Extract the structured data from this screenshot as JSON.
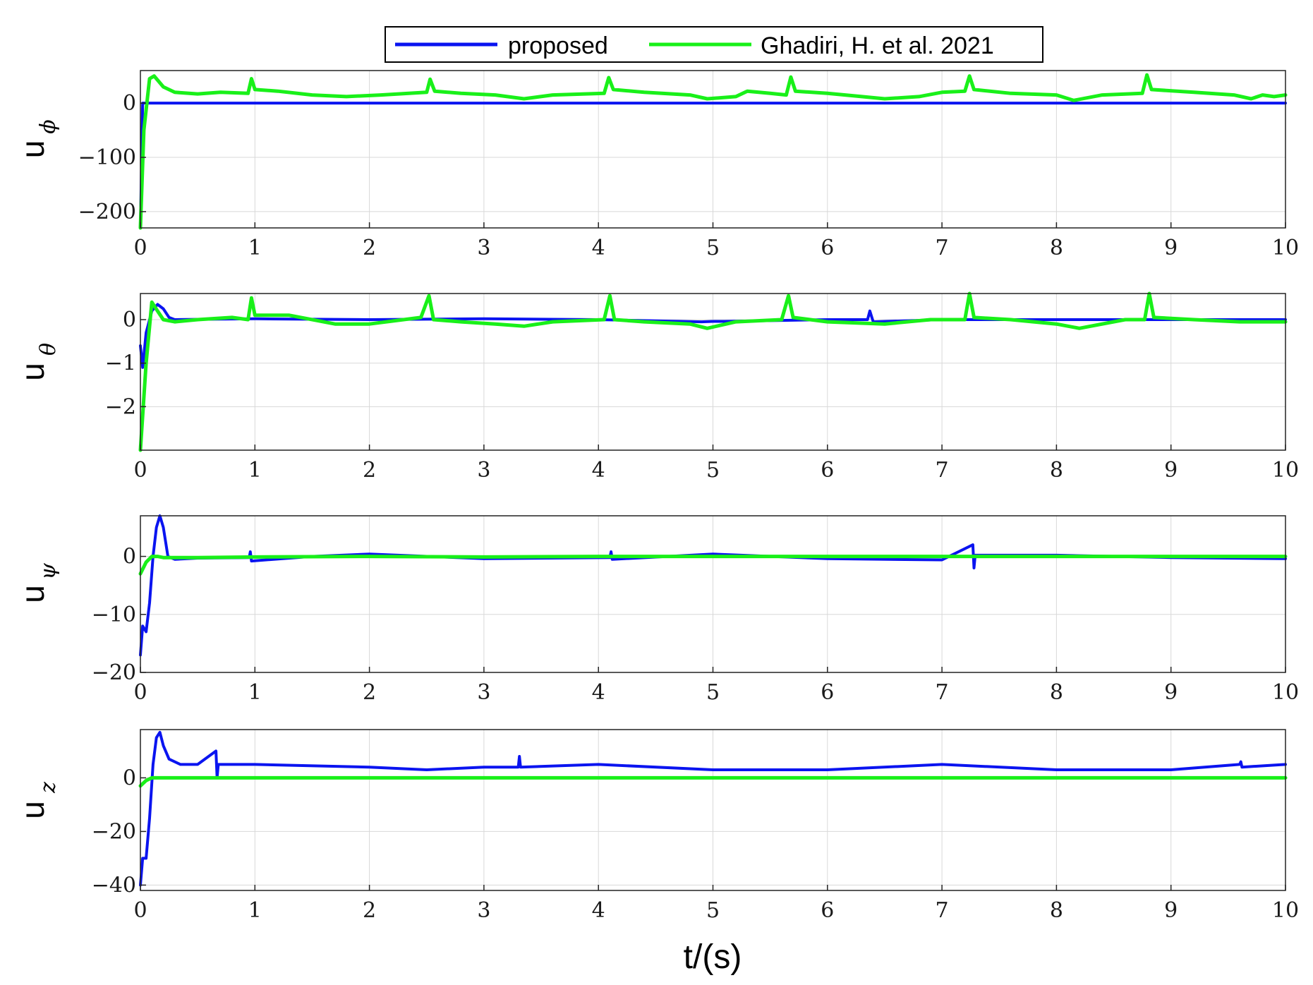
{
  "colors": {
    "proposed": "#0a14f0",
    "ghadiri": "#19f019",
    "grid": "#d8d8d8",
    "axis": "#222222"
  },
  "legend": {
    "items": [
      "proposed",
      "Ghadiri, H. et al. 2021"
    ],
    "placement": "top-center"
  },
  "xlabel": "t/(s)",
  "chart_data": [
    {
      "type": "line",
      "ylabel": "u",
      "ylabel_sub": "ϕ",
      "xlim": [
        0,
        10
      ],
      "ylim": [
        -230,
        60
      ],
      "xticks": [
        0,
        1,
        2,
        3,
        4,
        5,
        6,
        7,
        8,
        9,
        10
      ],
      "yticks": [
        0,
        -100,
        -200
      ],
      "ytick_labels": [
        "0",
        "−100",
        "−200"
      ],
      "grid": true,
      "series": [
        {
          "name": "proposed",
          "x": [
            0,
            0.02,
            10
          ],
          "y": [
            -230,
            0,
            0
          ]
        },
        {
          "name": "Ghadiri, H. et al. 2021",
          "x": [
            0,
            0.03,
            0.08,
            0.12,
            0.2,
            0.3,
            0.5,
            0.7,
            0.94,
            0.97,
            1.0,
            1.2,
            1.5,
            1.8,
            2.1,
            2.5,
            2.53,
            2.57,
            2.8,
            3.1,
            3.35,
            3.6,
            4.05,
            4.09,
            4.13,
            4.4,
            4.8,
            4.95,
            5.2,
            5.3,
            5.5,
            5.64,
            5.68,
            5.72,
            6.0,
            6.3,
            6.5,
            6.8,
            7.0,
            7.2,
            7.24,
            7.28,
            7.6,
            8.0,
            8.15,
            8.4,
            8.75,
            8.79,
            8.83,
            9.2,
            9.55,
            9.7,
            9.8,
            9.9,
            10
          ],
          "y": [
            -230,
            -50,
            45,
            50,
            30,
            20,
            17,
            20,
            18,
            45,
            25,
            22,
            15,
            12,
            15,
            20,
            44,
            22,
            18,
            15,
            8,
            15,
            18,
            47,
            25,
            20,
            15,
            8,
            12,
            22,
            18,
            15,
            48,
            22,
            18,
            12,
            8,
            12,
            20,
            22,
            50,
            25,
            18,
            15,
            5,
            15,
            18,
            52,
            25,
            20,
            15,
            8,
            15,
            12,
            15
          ]
        }
      ]
    },
    {
      "type": "line",
      "ylabel": "u",
      "ylabel_sub": "θ",
      "xlim": [
        0,
        10
      ],
      "ylim": [
        -3,
        0.6
      ],
      "xticks": [
        0,
        1,
        2,
        3,
        4,
        5,
        6,
        7,
        8,
        9,
        10
      ],
      "yticks": [
        0,
        -1,
        -2
      ],
      "ytick_labels": [
        "0",
        "−1",
        "−2"
      ],
      "grid": true,
      "series": [
        {
          "name": "proposed",
          "x": [
            0,
            0.02,
            0.05,
            0.1,
            0.15,
            0.2,
            0.25,
            0.3,
            1,
            2,
            3,
            4,
            4.9,
            5,
            5.1,
            6,
            6.35,
            6.37,
            6.4,
            7,
            8,
            9,
            10
          ],
          "y": [
            -0.6,
            -1.1,
            -0.3,
            0.2,
            0.35,
            0.25,
            0.05,
            0.0,
            0.02,
            0.0,
            0.02,
            0.0,
            -0.05,
            -0.04,
            -0.04,
            0.0,
            0.0,
            0.2,
            -0.05,
            0.0,
            0.0,
            0.0,
            0.0
          ]
        },
        {
          "name": "Ghadiri, H. et al. 2021",
          "x": [
            0,
            0.05,
            0.1,
            0.15,
            0.2,
            0.3,
            0.5,
            0.8,
            0.94,
            0.97,
            1.0,
            1.3,
            1.7,
            2.0,
            2.45,
            2.52,
            2.56,
            2.8,
            3.1,
            3.35,
            3.6,
            4.05,
            4.1,
            4.14,
            4.4,
            4.8,
            4.95,
            5.2,
            5.6,
            5.66,
            5.7,
            6.0,
            6.5,
            6.9,
            7.2,
            7.24,
            7.28,
            7.6,
            8.0,
            8.2,
            8.6,
            8.77,
            8.81,
            8.85,
            9.2,
            9.6,
            10
          ],
          "y": [
            -3,
            -1.0,
            0.4,
            0.2,
            0.0,
            -0.05,
            0.0,
            0.05,
            0.0,
            0.5,
            0.1,
            0.1,
            -0.1,
            -0.1,
            0.05,
            0.55,
            0.0,
            -0.05,
            -0.1,
            -0.15,
            -0.05,
            0.0,
            0.55,
            0.0,
            -0.05,
            -0.1,
            -0.2,
            -0.05,
            0.0,
            0.55,
            0.05,
            -0.05,
            -0.1,
            0.0,
            0.0,
            0.6,
            0.05,
            0.0,
            -0.1,
            -0.2,
            0.0,
            0.0,
            0.6,
            0.05,
            0.0,
            -0.05,
            -0.05
          ]
        }
      ]
    },
    {
      "type": "line",
      "ylabel": "u",
      "ylabel_sub": "ψ",
      "xlim": [
        0,
        10
      ],
      "ylim": [
        -20,
        7
      ],
      "xticks": [
        0,
        1,
        2,
        3,
        4,
        5,
        6,
        7,
        8,
        9,
        10
      ],
      "yticks": [
        0,
        -10,
        -20
      ],
      "ytick_labels": [
        "0",
        "−10",
        "−20"
      ],
      "grid": true,
      "series": [
        {
          "name": "proposed",
          "x": [
            0,
            0.02,
            0.05,
            0.08,
            0.11,
            0.14,
            0.17,
            0.2,
            0.24,
            0.3,
            0.5,
            0.95,
            0.96,
            0.97,
            1.5,
            2,
            3,
            4.1,
            4.11,
            4.12,
            5,
            6,
            7,
            7.27,
            7.28,
            7.29,
            8,
            9,
            10
          ],
          "y": [
            -17,
            -12,
            -13,
            -8,
            0,
            5,
            7,
            5,
            0,
            -0.5,
            -0.3,
            -0.2,
            0.8,
            -0.8,
            0.0,
            0.4,
            -0.4,
            -0.2,
            0.8,
            -0.5,
            0.4,
            -0.4,
            -0.6,
            2.0,
            -2.0,
            0.2,
            0.2,
            -0.2,
            -0.4
          ]
        },
        {
          "name": "Ghadiri, H. et al. 2021",
          "x": [
            0,
            0.05,
            0.1,
            0.15,
            0.2,
            0.5,
            1,
            2,
            3,
            4,
            5,
            6,
            7,
            8,
            9,
            10
          ],
          "y": [
            -3,
            -1,
            0,
            0,
            -0.2,
            -0.2,
            -0.1,
            0.0,
            -0.1,
            0.0,
            0.0,
            0.0,
            0.0,
            0.0,
            0.0,
            0.0
          ]
        }
      ]
    },
    {
      "type": "line",
      "ylabel": "u",
      "ylabel_sub": "z",
      "xlim": [
        0,
        10
      ],
      "ylim": [
        -42,
        18
      ],
      "xticks": [
        0,
        1,
        2,
        3,
        4,
        5,
        6,
        7,
        8,
        9,
        10
      ],
      "yticks": [
        0,
        -20,
        -40
      ],
      "ytick_labels": [
        "0",
        "−20",
        "−40"
      ],
      "grid": true,
      "series": [
        {
          "name": "proposed",
          "x": [
            0,
            0.02,
            0.05,
            0.08,
            0.11,
            0.14,
            0.17,
            0.2,
            0.25,
            0.35,
            0.5,
            0.66,
            0.67,
            0.68,
            1,
            2,
            2.5,
            3,
            3.3,
            3.31,
            3.32,
            4,
            5,
            6,
            7,
            8,
            9,
            9.6,
            9.61,
            9.62,
            10
          ],
          "y": [
            -40,
            -30,
            -30,
            -15,
            5,
            15,
            17,
            12,
            7,
            5,
            5,
            10,
            0,
            5,
            5,
            4,
            3,
            4,
            4,
            8,
            4,
            5,
            3,
            3,
            5,
            3,
            3,
            5,
            6,
            4,
            5
          ]
        },
        {
          "name": "Ghadiri, H. et al. 2021",
          "x": [
            0,
            0.05,
            0.1,
            0.2,
            1,
            2,
            3,
            4,
            5,
            6,
            7,
            8,
            9,
            10
          ],
          "y": [
            -3,
            -1,
            0,
            0,
            0,
            0,
            0,
            0,
            0,
            0,
            0,
            0,
            0,
            0
          ]
        }
      ]
    }
  ]
}
